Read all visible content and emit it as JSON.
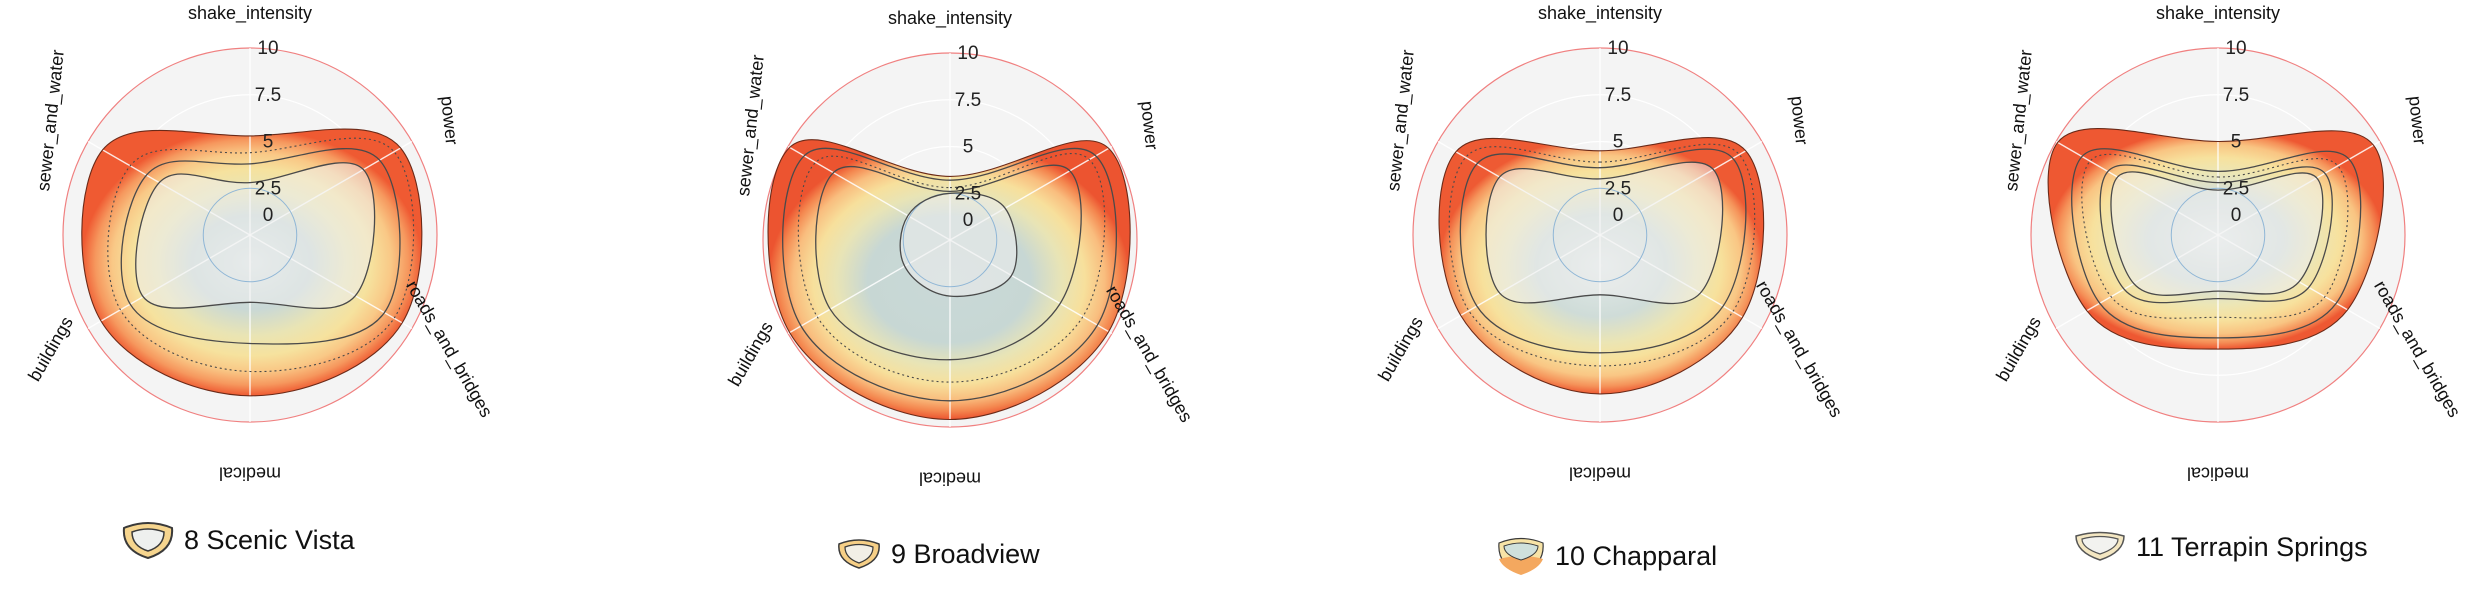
{
  "chart_data": [
    {
      "type": "radar",
      "axes": [
        "shake_intensity",
        "power",
        "roads_and_bridges",
        "medical",
        "buildings",
        "sewer_and_water"
      ],
      "radial_ticks": [
        "0",
        "2.5",
        "5",
        "7.5",
        "10"
      ],
      "rlim": [
        0,
        10
      ],
      "legend": "8 Scenic Vista",
      "series": [
        {
          "values": [
            2.8,
            7.0,
            6.5,
            3.6,
            6.6,
            5.6
          ]
        },
        {
          "values": [
            3.8,
            8.0,
            8.3,
            5.8,
            7.4,
            6.4
          ]
        },
        {
          "values": [
            4.4,
            8.9,
            8.9,
            7.3,
            8.0,
            7.4
          ]
        },
        {
          "values": [
            5.3,
            9.3,
            9.4,
            8.6,
            9.2,
            9.1
          ]
        }
      ]
    },
    {
      "type": "radar",
      "axes": [
        "shake_intensity",
        "power",
        "roads_and_bridges",
        "medical",
        "buildings",
        "sewer_and_water"
      ],
      "radial_ticks": [
        "0",
        "2.5",
        "5",
        "7.5",
        "10"
      ],
      "rlim": [
        0,
        10
      ],
      "legend": "9 Broadview",
      "series": [
        {
          "values": [
            2.5,
            3.4,
            3.8,
            3.0,
            2.8,
            2.6
          ]
        },
        {
          "values": [
            2.6,
            7.4,
            6.8,
            6.4,
            7.4,
            7.2
          ]
        },
        {
          "values": [
            2.8,
            8.6,
            8.2,
            7.6,
            8.2,
            8.3
          ]
        },
        {
          "values": [
            3.2,
            9.0,
            9.1,
            8.6,
            9.2,
            9.0
          ]
        },
        {
          "values": [
            3.4,
            9.8,
            9.8,
            9.6,
            9.9,
            9.9
          ]
        }
      ]
    },
    {
      "type": "radar",
      "axes": [
        "shake_intensity",
        "power",
        "roads_and_bridges",
        "medical",
        "buildings",
        "sewer_and_water"
      ],
      "radial_ticks": [
        "0",
        "2.5",
        "5",
        "7.5",
        "10"
      ],
      "rlim": [
        0,
        10
      ],
      "legend": "10 Chapparal",
      "series": [
        {
          "values": [
            3.0,
            7.0,
            6.2,
            3.2,
            6.2,
            6.2
          ]
        },
        {
          "values": [
            3.6,
            8.2,
            7.6,
            6.3,
            7.6,
            7.6
          ]
        },
        {
          "values": [
            3.9,
            8.6,
            8.2,
            7.0,
            8.1,
            8.3
          ]
        },
        {
          "values": [
            4.5,
            9.0,
            8.8,
            8.5,
            8.6,
            8.9
          ]
        }
      ]
    },
    {
      "type": "radar",
      "axes": [
        "shake_intensity",
        "power",
        "roads_and_bridges",
        "medical",
        "buildings",
        "sewer_and_water"
      ],
      "radial_ticks": [
        "0",
        "2.5",
        "5",
        "7.5",
        "10"
      ],
      "rlim": [
        0,
        10
      ],
      "legend": "11 Terrapin Springs",
      "series": [
        {
          "values": [
            2.4,
            6.1,
            5.0,
            3.0,
            5.2,
            6.2
          ]
        },
        {
          "values": [
            2.8,
            6.6,
            5.6,
            3.4,
            5.8,
            6.8
          ]
        },
        {
          "values": [
            3.1,
            7.4,
            6.6,
            4.4,
            6.6,
            7.9
          ]
        },
        {
          "values": [
            3.4,
            8.1,
            7.3,
            5.5,
            7.3,
            8.4
          ]
        },
        {
          "values": [
            5.0,
            9.6,
            8.0,
            6.1,
            8.1,
            9.9
          ]
        }
      ]
    }
  ]
}
